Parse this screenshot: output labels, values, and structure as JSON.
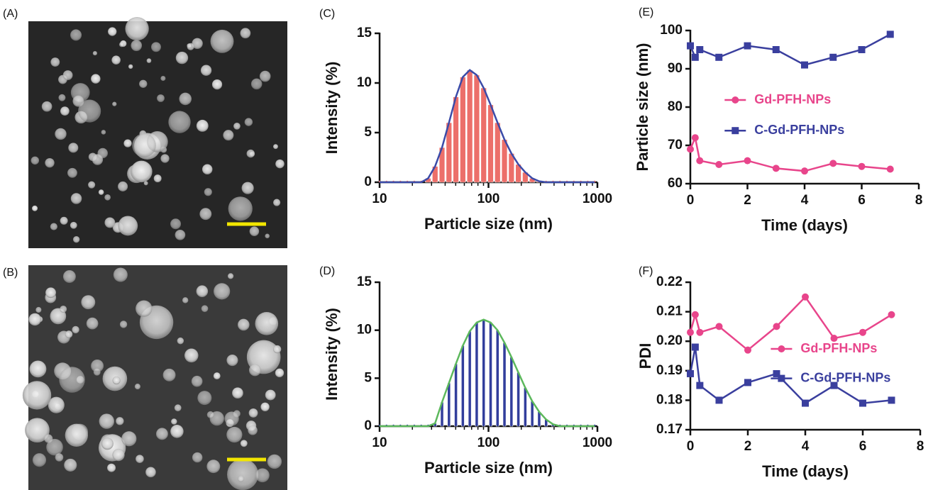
{
  "image_panels": [
    {
      "label": "(A)"
    },
    {
      "label": "(B)"
    }
  ],
  "chart_data": [
    {
      "type": "bar",
      "label": "(C)",
      "xscale": "log",
      "xlabel": "Particle size (nm)",
      "ylabel": "Intensity (%)",
      "x": [
        10,
        11.58,
        13.41,
        15.53,
        17.98,
        20.82,
        24.11,
        27.92,
        32.33,
        37.44,
        43.36,
        50.21,
        58.14,
        67.33,
        77.97,
        90.29,
        104.6,
        121.1,
        140.2,
        162.4,
        188.0,
        217.7,
        252.1,
        292.0,
        338.1,
        391.5,
        453.4,
        525.0,
        608.0,
        704.0,
        815.3,
        944.1
      ],
      "values": [
        0,
        0,
        0,
        0,
        0,
        0,
        0,
        0.4,
        1.6,
        3.5,
        6.0,
        8.6,
        10.6,
        11.3,
        10.8,
        9.5,
        7.8,
        6.0,
        4.3,
        2.9,
        1.8,
        1.0,
        0.4,
        0.1,
        0,
        0,
        0,
        0,
        0,
        0,
        0,
        0
      ],
      "color": "#ec6f6a",
      "curve_color": "#3b4ba8",
      "xlim": [
        10,
        1000
      ],
      "xticks": [
        10,
        100,
        1000
      ],
      "ylim": [
        0,
        15
      ],
      "yticks": [
        0,
        5,
        10,
        15
      ]
    },
    {
      "type": "bar",
      "label": "(D)",
      "xscale": "log",
      "xlabel": "Particle size (nm)",
      "ylabel": "Intensity (%)",
      "x": [
        10,
        11.58,
        13.41,
        15.53,
        17.98,
        20.82,
        24.11,
        27.92,
        32.33,
        37.44,
        43.36,
        50.21,
        58.14,
        67.33,
        77.97,
        90.29,
        104.6,
        121.1,
        140.2,
        162.4,
        188.0,
        217.7,
        252.1,
        292.0,
        338.1,
        391.5,
        453.4,
        525.0,
        608.0,
        704.0,
        815.3,
        944.1
      ],
      "values": [
        0,
        0,
        0,
        0,
        0,
        0,
        0,
        0,
        0.3,
        2.5,
        4.5,
        6.5,
        8.4,
        9.9,
        10.8,
        11.1,
        10.8,
        10.0,
        8.7,
        7.2,
        5.6,
        4.0,
        2.6,
        1.5,
        0.7,
        0.2,
        0,
        0,
        0,
        0,
        0,
        0
      ],
      "color": "#323e9c",
      "curve_color": "#5cb85c",
      "xlim": [
        10,
        1000
      ],
      "xticks": [
        10,
        100,
        1000
      ],
      "ylim": [
        0,
        15
      ],
      "yticks": [
        0,
        5,
        10,
        15
      ]
    },
    {
      "type": "line",
      "label": "(E)",
      "xlabel": "Time (days)",
      "ylabel": "Particle size (nm)",
      "legend": "center-left",
      "x": [
        0,
        0.17,
        0.33,
        1,
        2,
        3,
        4,
        5,
        6,
        7
      ],
      "series": [
        {
          "name": "Gd-PFH-NPs",
          "color": "#e8458b",
          "marker": "circle",
          "values": [
            69,
            72,
            66,
            65,
            66,
            64,
            63.3,
            65.3,
            64.5,
            63.8
          ]
        },
        {
          "name": "C-Gd-PFH-NPs",
          "color": "#3a3f9e",
          "marker": "square",
          "values": [
            96,
            93,
            95,
            93,
            96,
            95,
            91,
            93,
            95,
            99
          ]
        }
      ],
      "xlim": [
        0,
        8
      ],
      "xticks": [
        0,
        2,
        4,
        6,
        8
      ],
      "ylim": [
        60,
        100
      ],
      "yticks": [
        60,
        70,
        80,
        90,
        100
      ]
    },
    {
      "type": "line",
      "label": "(F)",
      "xlabel": "Time (days)",
      "ylabel": "PDI",
      "legend": "center-right",
      "x": [
        0,
        0.17,
        0.33,
        1,
        2,
        3,
        4,
        5,
        6,
        7
      ],
      "series": [
        {
          "name": "Gd-PFH-NPs",
          "color": "#e8458b",
          "marker": "circle",
          "values": [
            0.203,
            0.209,
            0.203,
            0.205,
            0.197,
            0.205,
            0.215,
            0.201,
            0.203,
            0.209
          ]
        },
        {
          "name": "C-Gd-PFH-NPs",
          "color": "#3a3f9e",
          "marker": "square",
          "values": [
            0.189,
            0.198,
            0.185,
            0.18,
            0.186,
            0.189,
            0.179,
            0.185,
            0.179,
            0.18
          ]
        }
      ],
      "xlim": [
        0,
        8
      ],
      "xticks": [
        0,
        2,
        4,
        6,
        8
      ],
      "ylim": [
        0.17,
        0.22
      ],
      "yticks": [
        0.17,
        0.18,
        0.19,
        {
          "value": 0.2,
          "label": "0.20"
        },
        0.21,
        0.22
      ]
    }
  ]
}
